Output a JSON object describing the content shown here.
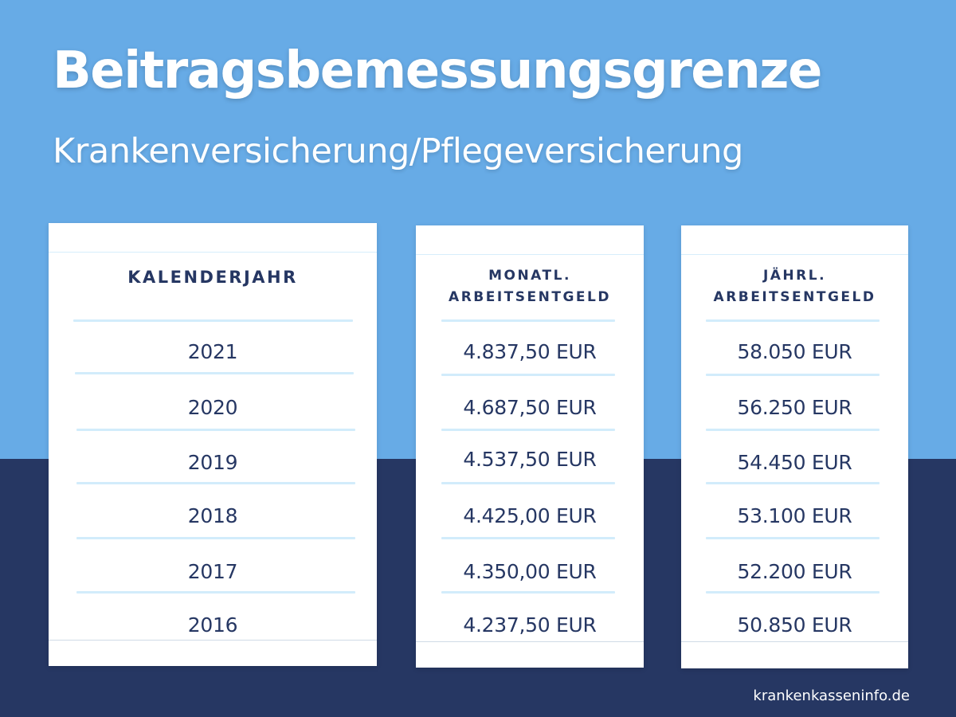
{
  "title": "Beitragsbemessungsgrenze",
  "subtitle": "Krankenversicherung/Pflegeversicherung",
  "colors": {
    "background_top": "#67abe6",
    "background_bottom": "#263763",
    "card": "#ffffff",
    "text_dark": "#263763",
    "divider": "#d2ecfb"
  },
  "table": {
    "columns": [
      {
        "header": [
          "KALENDERJAHR"
        ],
        "values": [
          "2021",
          "2020",
          "2019",
          "2018",
          "2017",
          "2016"
        ]
      },
      {
        "header": [
          "MONATL.",
          "ARBEITSENTGELD"
        ],
        "values": [
          "4.837,50 EUR",
          "4.687,50 EUR",
          "4.537,50 EUR",
          "4.425,00 EUR",
          "4.350,00 EUR",
          "4.237,50 EUR"
        ]
      },
      {
        "header": [
          "JÄHRL.",
          "ARBEITSENTGELD"
        ],
        "values": [
          "58.050 EUR",
          "56.250 EUR",
          "54.450 EUR",
          "53.100 EUR",
          "52.200 EUR",
          "50.850 EUR"
        ]
      }
    ]
  },
  "footer": "krankenkasseninfo.de"
}
